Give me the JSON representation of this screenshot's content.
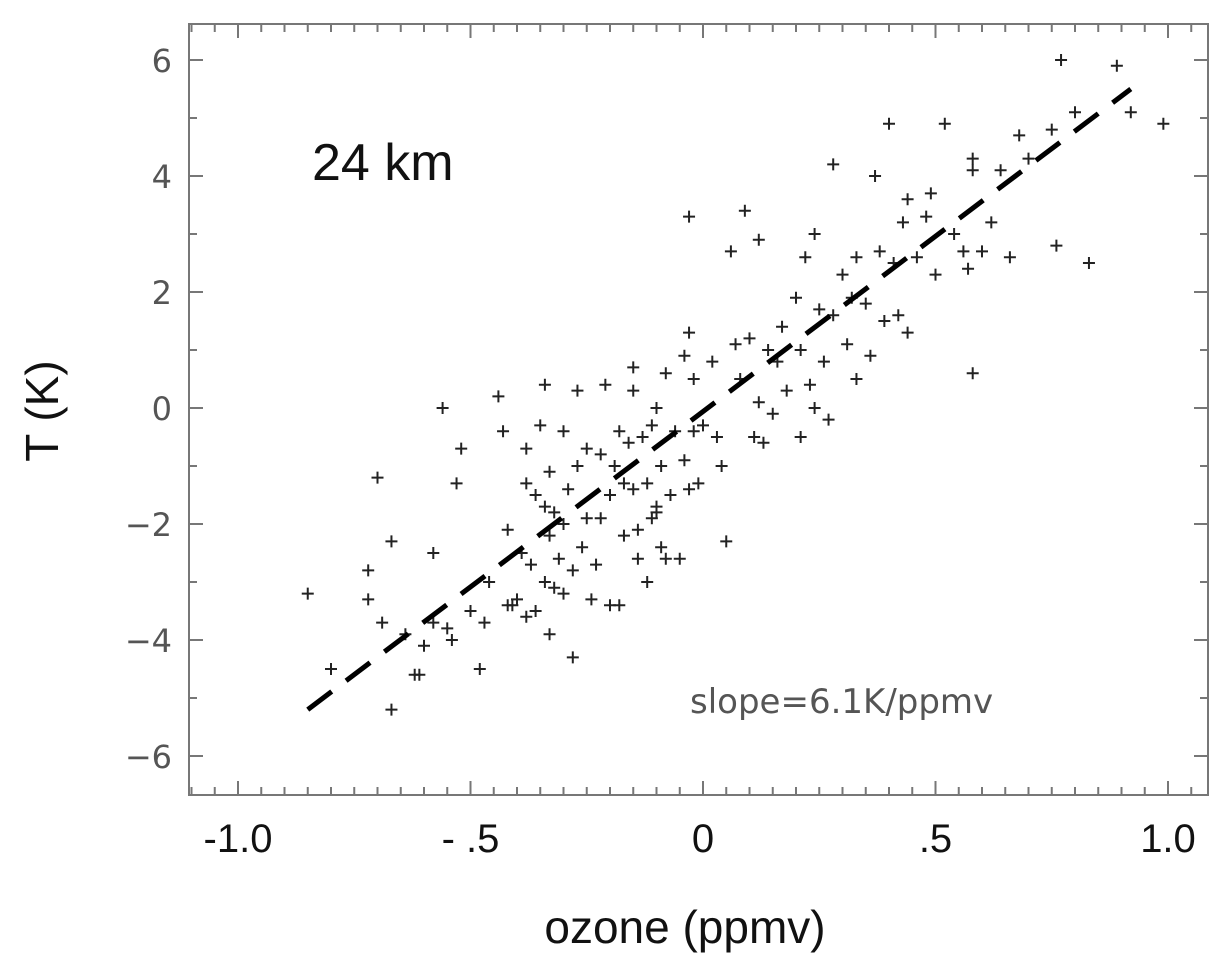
{
  "chart_data": {
    "type": "scatter",
    "title": "",
    "panel_label": "24 km",
    "xlabel": "ozone (ppmv)",
    "ylabel": "T (K)",
    "xlim": [
      -1.1,
      1.1
    ],
    "ylim": [
      -6.7,
      6.5
    ],
    "x_tick_values": [
      -1.0,
      -0.5,
      0,
      0.5,
      1.0
    ],
    "x_tick_labels": [
      "-1.0",
      "- .5",
      "0",
      ".5",
      "1.0"
    ],
    "y_tick_values": [
      6,
      4,
      2,
      0,
      -2,
      -4,
      -6
    ],
    "y_tick_labels": [
      "6",
      "4",
      "2",
      "0",
      "−2",
      "−4",
      "−6"
    ],
    "annotation": "slope=6.1K/ppmv",
    "grid": false,
    "fit_line": {
      "slope": 6.1,
      "x": [
        -0.85,
        0.92
      ],
      "y": [
        -5.2,
        5.5
      ],
      "style": "dashed"
    },
    "series": [
      {
        "marker": "+",
        "points": [
          [
            -0.85,
            -3.2
          ],
          [
            -0.8,
            -4.5
          ],
          [
            -0.72,
            -2.8
          ],
          [
            -0.72,
            -3.3
          ],
          [
            -0.7,
            -1.2
          ],
          [
            -0.69,
            -3.7
          ],
          [
            -0.67,
            -2.3
          ],
          [
            -0.67,
            -5.2
          ],
          [
            -0.64,
            -3.9
          ],
          [
            -0.62,
            -4.6
          ],
          [
            -0.61,
            -4.6
          ],
          [
            -0.6,
            -4.1
          ],
          [
            -0.58,
            -2.5
          ],
          [
            -0.58,
            -3.7
          ],
          [
            -0.55,
            -3.8
          ],
          [
            -0.54,
            -4.0
          ],
          [
            -0.53,
            -1.3
          ],
          [
            -0.52,
            -0.7
          ],
          [
            -0.56,
            0.0
          ],
          [
            -0.5,
            -3.5
          ],
          [
            -0.48,
            -4.5
          ],
          [
            -0.47,
            -3.7
          ],
          [
            -0.46,
            -3.0
          ],
          [
            -0.44,
            0.2
          ],
          [
            -0.43,
            -0.4
          ],
          [
            -0.42,
            -2.1
          ],
          [
            -0.42,
            -3.4
          ],
          [
            -0.41,
            -3.4
          ],
          [
            -0.4,
            -3.3
          ],
          [
            -0.39,
            -2.5
          ],
          [
            -0.38,
            -0.7
          ],
          [
            -0.38,
            -1.3
          ],
          [
            -0.38,
            -3.6
          ],
          [
            -0.37,
            -2.7
          ],
          [
            -0.36,
            -1.5
          ],
          [
            -0.36,
            -3.5
          ],
          [
            -0.35,
            -0.3
          ],
          [
            -0.34,
            0.4
          ],
          [
            -0.34,
            -1.7
          ],
          [
            -0.34,
            -3.0
          ],
          [
            -0.33,
            -1.1
          ],
          [
            -0.33,
            -2.2
          ],
          [
            -0.33,
            -3.9
          ],
          [
            -0.32,
            -1.8
          ],
          [
            -0.32,
            -3.1
          ],
          [
            -0.31,
            -2.6
          ],
          [
            -0.3,
            -0.4
          ],
          [
            -0.3,
            -2.0
          ],
          [
            -0.3,
            -3.2
          ],
          [
            -0.29,
            -1.4
          ],
          [
            -0.28,
            -4.3
          ],
          [
            -0.28,
            -2.8
          ],
          [
            -0.27,
            0.3
          ],
          [
            -0.27,
            -1.0
          ],
          [
            -0.26,
            -2.4
          ],
          [
            -0.25,
            -1.9
          ],
          [
            -0.25,
            -0.7
          ],
          [
            -0.24,
            -3.3
          ],
          [
            -0.23,
            -2.7
          ],
          [
            -0.22,
            -0.8
          ],
          [
            -0.22,
            -1.9
          ],
          [
            -0.21,
            0.4
          ],
          [
            -0.2,
            -1.5
          ],
          [
            -0.2,
            -3.4
          ],
          [
            -0.19,
            -1.0
          ],
          [
            -0.18,
            -3.4
          ],
          [
            -0.18,
            -0.4
          ],
          [
            -0.17,
            -1.3
          ],
          [
            -0.17,
            -2.2
          ],
          [
            -0.16,
            -0.6
          ],
          [
            -0.15,
            0.7
          ],
          [
            -0.15,
            0.3
          ],
          [
            -0.15,
            -1.4
          ],
          [
            -0.14,
            -2.1
          ],
          [
            -0.14,
            -2.6
          ],
          [
            -0.13,
            -0.5
          ],
          [
            -0.12,
            -1.3
          ],
          [
            -0.12,
            -3.0
          ],
          [
            -0.11,
            -0.3
          ],
          [
            -0.11,
            -1.9
          ],
          [
            -0.1,
            0.0
          ],
          [
            -0.1,
            -1.7
          ],
          [
            -0.09,
            -1.0
          ],
          [
            -0.09,
            -2.4
          ],
          [
            -0.08,
            0.6
          ],
          [
            -0.08,
            -2.6
          ],
          [
            -0.07,
            -1.5
          ],
          [
            -0.06,
            -0.4
          ],
          [
            -0.05,
            -2.6
          ],
          [
            -0.04,
            0.9
          ],
          [
            -0.04,
            -0.9
          ],
          [
            -0.03,
            1.3
          ],
          [
            -0.03,
            -1.4
          ],
          [
            -0.02,
            0.5
          ],
          [
            -0.02,
            -0.4
          ],
          [
            -0.01,
            -1.3
          ],
          [
            0.0,
            -0.3
          ],
          [
            0.02,
            0.8
          ],
          [
            0.03,
            -0.5
          ],
          [
            0.04,
            -1.0
          ],
          [
            0.05,
            -2.3
          ],
          [
            0.06,
            2.7
          ],
          [
            0.07,
            1.1
          ],
          [
            0.08,
            0.5
          ],
          [
            0.09,
            3.4
          ],
          [
            0.1,
            1.2
          ],
          [
            0.11,
            -0.5
          ],
          [
            0.12,
            0.1
          ],
          [
            0.12,
            2.9
          ],
          [
            0.13,
            -0.6
          ],
          [
            0.14,
            1.0
          ],
          [
            0.15,
            -0.1
          ],
          [
            0.16,
            0.8
          ],
          [
            0.17,
            1.4
          ],
          [
            0.18,
            0.3
          ],
          [
            0.2,
            1.9
          ],
          [
            0.21,
            -0.5
          ],
          [
            0.21,
            1.0
          ],
          [
            0.22,
            2.6
          ],
          [
            0.23,
            0.4
          ],
          [
            0.24,
            0.0
          ],
          [
            0.24,
            3.0
          ],
          [
            0.25,
            1.7
          ],
          [
            0.26,
            0.8
          ],
          [
            0.27,
            -0.2
          ],
          [
            0.28,
            4.2
          ],
          [
            0.28,
            1.6
          ],
          [
            0.3,
            2.3
          ],
          [
            0.31,
            1.1
          ],
          [
            0.32,
            1.9
          ],
          [
            0.33,
            2.6
          ],
          [
            0.33,
            0.5
          ],
          [
            0.35,
            1.8
          ],
          [
            0.36,
            0.9
          ],
          [
            0.37,
            4.0
          ],
          [
            0.38,
            2.7
          ],
          [
            0.39,
            1.5
          ],
          [
            0.4,
            4.9
          ],
          [
            0.41,
            2.5
          ],
          [
            0.42,
            1.6
          ],
          [
            0.43,
            3.2
          ],
          [
            0.44,
            1.3
          ],
          [
            0.44,
            3.6
          ],
          [
            0.46,
            2.6
          ],
          [
            0.48,
            3.3
          ],
          [
            0.49,
            3.7
          ],
          [
            0.5,
            2.3
          ],
          [
            0.52,
            4.9
          ],
          [
            0.54,
            3.0
          ],
          [
            0.56,
            2.7
          ],
          [
            0.57,
            2.4
          ],
          [
            0.58,
            0.6
          ],
          [
            0.58,
            4.1
          ],
          [
            0.58,
            4.3
          ],
          [
            0.6,
            2.7
          ],
          [
            0.62,
            3.2
          ],
          [
            0.64,
            4.1
          ],
          [
            0.66,
            2.6
          ],
          [
            0.68,
            4.7
          ],
          [
            0.7,
            4.3
          ],
          [
            0.75,
            4.8
          ],
          [
            0.76,
            2.8
          ],
          [
            0.77,
            6.0
          ],
          [
            0.8,
            5.1
          ],
          [
            0.83,
            2.5
          ],
          [
            0.89,
            5.9
          ],
          [
            0.92,
            5.1
          ],
          [
            0.99,
            4.9
          ],
          [
            -0.03,
            3.3
          ],
          [
            -0.1,
            -1.8
          ]
        ]
      }
    ]
  }
}
